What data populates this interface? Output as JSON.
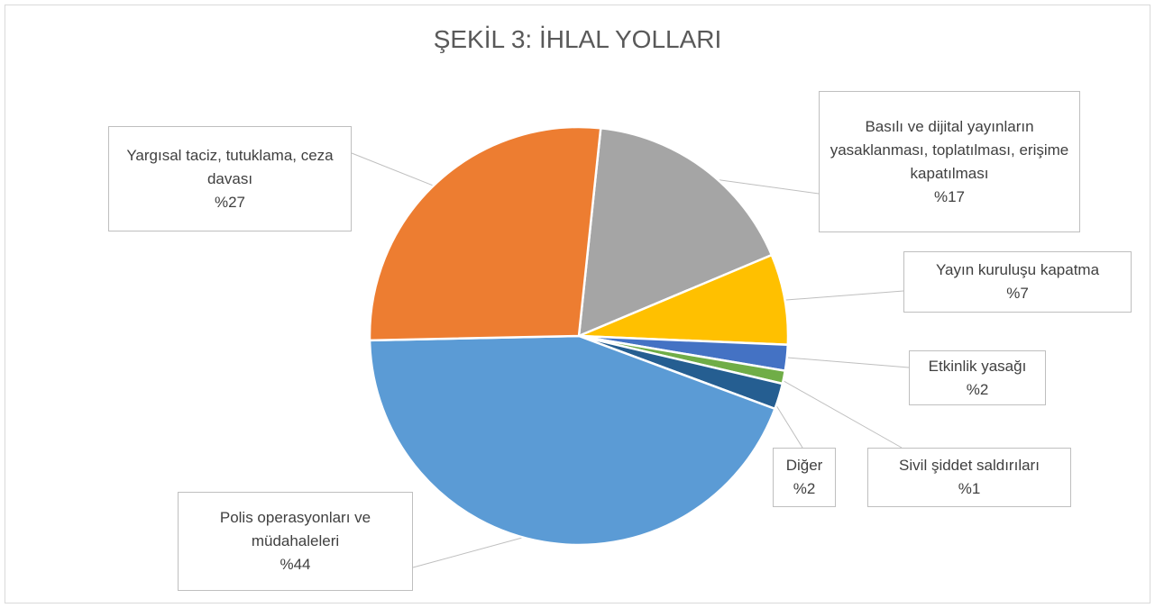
{
  "chart_data": {
    "type": "pie",
    "title": "ŞEKİL 3: İHLAL YOLLARI",
    "categories": [
      "Basılı ve dijital yayınların yasaklanması, toplatılması, erişime kapatılması",
      "Yayın kuruluşu kapatma",
      "Etkinlik yasağı",
      "Sivil şiddet saldırıları",
      "Diğer",
      "Polis operasyonları ve müdahaleleri",
      "Yargısal taciz, tutuklama, ceza davası"
    ],
    "values": [
      17,
      7,
      2,
      1,
      2,
      44,
      27
    ],
    "value_labels": [
      "%17",
      "%7",
      "%2",
      "%1",
      "%2",
      "%44",
      "%27"
    ],
    "colors": [
      "#a5a5a5",
      "#ffc000",
      "#4472c4",
      "#70ad47",
      "#255e91",
      "#5b9bd5",
      "#ed7d31"
    ]
  }
}
